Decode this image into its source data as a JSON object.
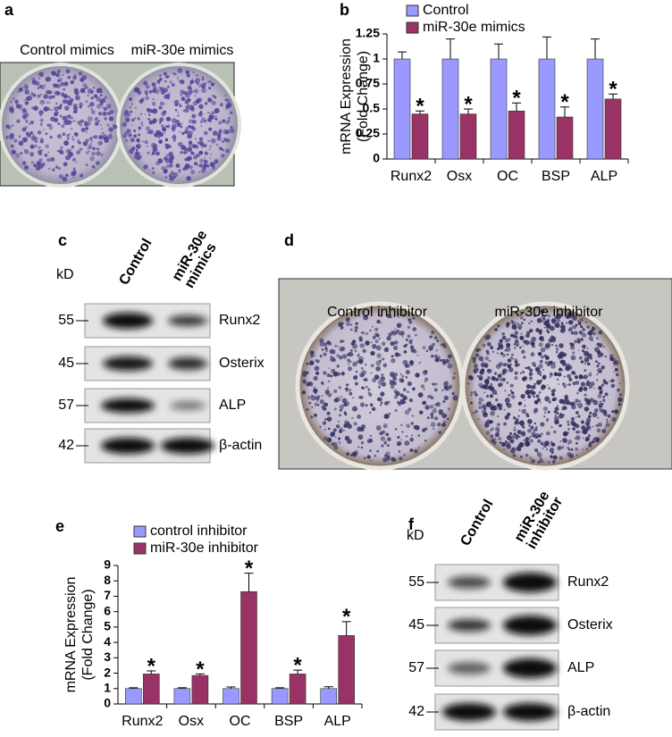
{
  "panels": {
    "a": {
      "letter": "a",
      "labels": [
        "Control mimics",
        "miR-30e mimics"
      ]
    },
    "c": {
      "letter": "c",
      "unit": "kD",
      "columns": [
        "Control",
        [
          "miR-30e",
          "mimics"
        ]
      ],
      "rows": [
        {
          "kd": "55",
          "protein": "Runx2"
        },
        {
          "kd": "45",
          "protein": "Osterix"
        },
        {
          "kd": "57",
          "protein": "ALP"
        },
        {
          "kd": "42",
          "protein": "β-actin"
        }
      ]
    },
    "d": {
      "letter": "d",
      "labels": [
        "Control inhibitor",
        "miR-30e inhibitor"
      ]
    },
    "f": {
      "letter": "f",
      "unit": "kD",
      "columns": [
        "Control",
        [
          "miR-30e",
          "inhibitor"
        ]
      ],
      "rows": [
        {
          "kd": "55",
          "protein": "Runx2"
        },
        {
          "kd": "45",
          "protein": "Osterix"
        },
        {
          "kd": "57",
          "protein": "ALP"
        },
        {
          "kd": "42",
          "protein": "β-actin"
        }
      ]
    }
  },
  "chart_data": [
    {
      "type": "bar",
      "panel_letter": "b",
      "y_label": [
        "mRNA Expression",
        "(Fold Change)"
      ],
      "categories": [
        "Runx2",
        "Osx",
        "OC",
        "BSP",
        "ALP"
      ],
      "series": [
        {
          "name": "Control",
          "color": "#9999ff",
          "values": [
            1,
            1,
            1,
            1,
            1
          ],
          "errors": [
            0.07,
            0.2,
            0.15,
            0.22,
            0.2
          ]
        },
        {
          "name": "miR-30e mimics",
          "color": "#993366",
          "values": [
            0.45,
            0.45,
            0.48,
            0.42,
            0.6
          ],
          "errors": [
            0.03,
            0.05,
            0.08,
            0.1,
            0.05
          ],
          "significance": [
            "*",
            "*",
            "*",
            "*",
            "*"
          ]
        }
      ],
      "ylim": [
        0,
        1.25
      ],
      "yticks": [
        0,
        0.25,
        0.5,
        0.75,
        1,
        1.25
      ]
    },
    {
      "type": "bar",
      "panel_letter": "e",
      "y_label": [
        "mRNA Expression",
        "(Fold Change)"
      ],
      "categories": [
        "Runx2",
        "Osx",
        "OC",
        "BSP",
        "ALP"
      ],
      "series": [
        {
          "name": "control inhibitor",
          "color": "#9999ff",
          "values": [
            1,
            1,
            1,
            1,
            1
          ],
          "errors": [
            0.05,
            0.05,
            0.1,
            0.05,
            0.12
          ]
        },
        {
          "name": "miR-30e inhibitor",
          "color": "#993366",
          "values": [
            1.95,
            1.85,
            7.3,
            1.95,
            4.45
          ],
          "errors": [
            0.2,
            0.1,
            1.2,
            0.25,
            0.9
          ],
          "significance": [
            "*",
            "*",
            "*",
            "*",
            "*"
          ]
        }
      ],
      "ylim": [
        0,
        9
      ],
      "yticks": [
        0,
        1,
        2,
        3,
        4,
        5,
        6,
        7,
        8,
        9
      ]
    }
  ]
}
